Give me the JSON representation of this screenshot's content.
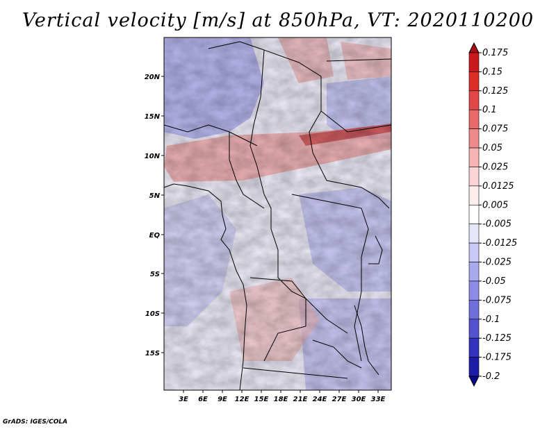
{
  "title": "Vertical velocity [m/s] at 850hPa, VT: 2020110200",
  "credit": "GrADS: IGES/COLA",
  "map": {
    "lat_labels": [
      "20N",
      "15N",
      "10N",
      "5N",
      "EQ",
      "5S",
      "10S",
      "15S"
    ],
    "lon_labels": [
      "3E",
      "6E",
      "9E",
      "12E",
      "15E",
      "18E",
      "21E",
      "24E",
      "27E",
      "30E",
      "33E"
    ]
  },
  "colorbar": {
    "levels": [
      "0.175",
      "0.15",
      "0.125",
      "0.1",
      "0.075",
      "0.05",
      "0.025",
      "0.0125",
      "0.005",
      "-0.005",
      "-0.0125",
      "-0.025",
      "-0.05",
      "-0.075",
      "-0.1",
      "-0.125",
      "-0.175",
      "-0.2"
    ],
    "colors": [
      "#a50f15",
      "#cb181d",
      "#de2d26",
      "#e04848",
      "#e86a6a",
      "#ef8a8a",
      "#f6b3b3",
      "#fbd5d5",
      "#fdeeee",
      "#ffffff",
      "#e6e6fb",
      "#c9c9f5",
      "#a9a9ee",
      "#8c8ce6",
      "#6f6fdc",
      "#5252cf",
      "#3333bf",
      "#1c1ca8",
      "#0a0a8a"
    ]
  }
}
